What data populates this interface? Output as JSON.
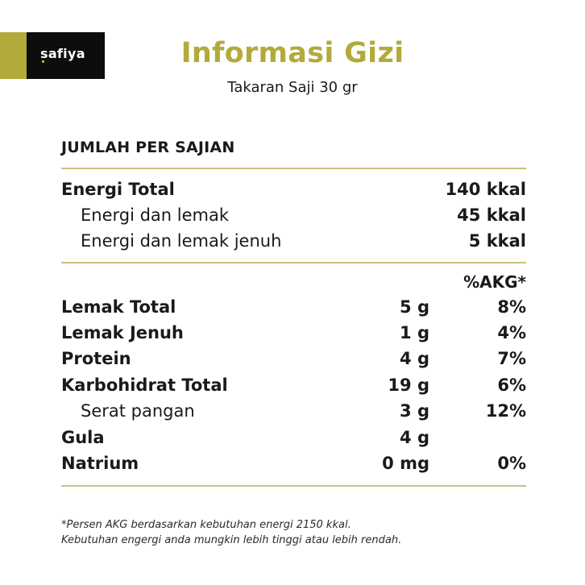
{
  "brand": {
    "name": "safiya"
  },
  "header": {
    "title": "Informasi Gizi",
    "serving": "Takaran Saji 30 gr"
  },
  "section_title": "JUMLAH PER SAJIAN",
  "energy": [
    {
      "label": "Energi Total",
      "value": "140 kkal"
    },
    {
      "label": "Energi dan lemak",
      "value": "45 kkal"
    },
    {
      "label": "Energi dan lemak jenuh",
      "value": "5 kkal"
    }
  ],
  "akg_header": "%AKG*",
  "nutrients": [
    {
      "label": "Lemak Total",
      "amount": "5 g",
      "akg": "8%"
    },
    {
      "label": "Lemak Jenuh",
      "amount": "1 g",
      "akg": "4%"
    },
    {
      "label": "Protein",
      "amount": "4 g",
      "akg": "7%"
    },
    {
      "label": "Karbohidrat Total",
      "amount": "19 g",
      "akg": "6%"
    },
    {
      "label": "Serat pangan",
      "amount": "3 g",
      "akg": "12%"
    },
    {
      "label": "Gula",
      "amount": "4 g",
      "akg": ""
    },
    {
      "label": "Natrium",
      "amount": "0 mg",
      "akg": "0%"
    }
  ],
  "footnote": {
    "line1": "*Persen AKG berdasarkan kebutuhan energi 2150 kkal.",
    "line2": "Kebutuhan engergi anda mungkin lebih tinggi atau lebih rendah."
  },
  "colors": {
    "accent": "#b2ab3c",
    "logo_bg": "#0d0d0d",
    "rule": "#c9c27a"
  }
}
